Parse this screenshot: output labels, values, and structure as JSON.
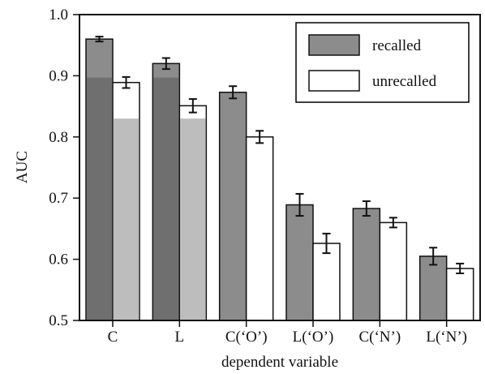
{
  "chart_data": {
    "type": "bar",
    "xlabel": "dependent variable",
    "ylabel": "AUC",
    "ylim": [
      0.5,
      1.0
    ],
    "yticks": [
      "0.5",
      "0.6",
      "0.7",
      "0.8",
      "0.9",
      "1.0"
    ],
    "categories": [
      "C",
      "L",
      "C(‘O’)",
      "L(‘O’)",
      "C(‘N’)",
      "L(‘N’)"
    ],
    "series": [
      {
        "name": "recalled",
        "color": "#8c8c8c",
        "values": [
          0.96,
          0.92,
          0.873,
          0.689,
          0.683,
          0.605
        ],
        "errors": [
          0.004,
          0.009,
          0.01,
          0.018,
          0.012,
          0.014
        ]
      },
      {
        "name": "unrecalled",
        "color": "#ffffff",
        "values": [
          0.889,
          0.851,
          0.8,
          0.626,
          0.66,
          0.585
        ],
        "errors": [
          0.009,
          0.011,
          0.01,
          0.016,
          0.008,
          0.008
        ]
      }
    ],
    "overlay": {
      "recalled_color": "#6f6f6f",
      "unrecalled_color": "#bdbdbd",
      "categories": [
        "C",
        "L"
      ],
      "recalled_values": [
        0.897,
        0.897
      ],
      "unrecalled_values": [
        0.83,
        0.83
      ]
    },
    "legend": {
      "placement": "top-right",
      "entries": [
        "recalled",
        "unrecalled"
      ]
    },
    "grid": false
  }
}
